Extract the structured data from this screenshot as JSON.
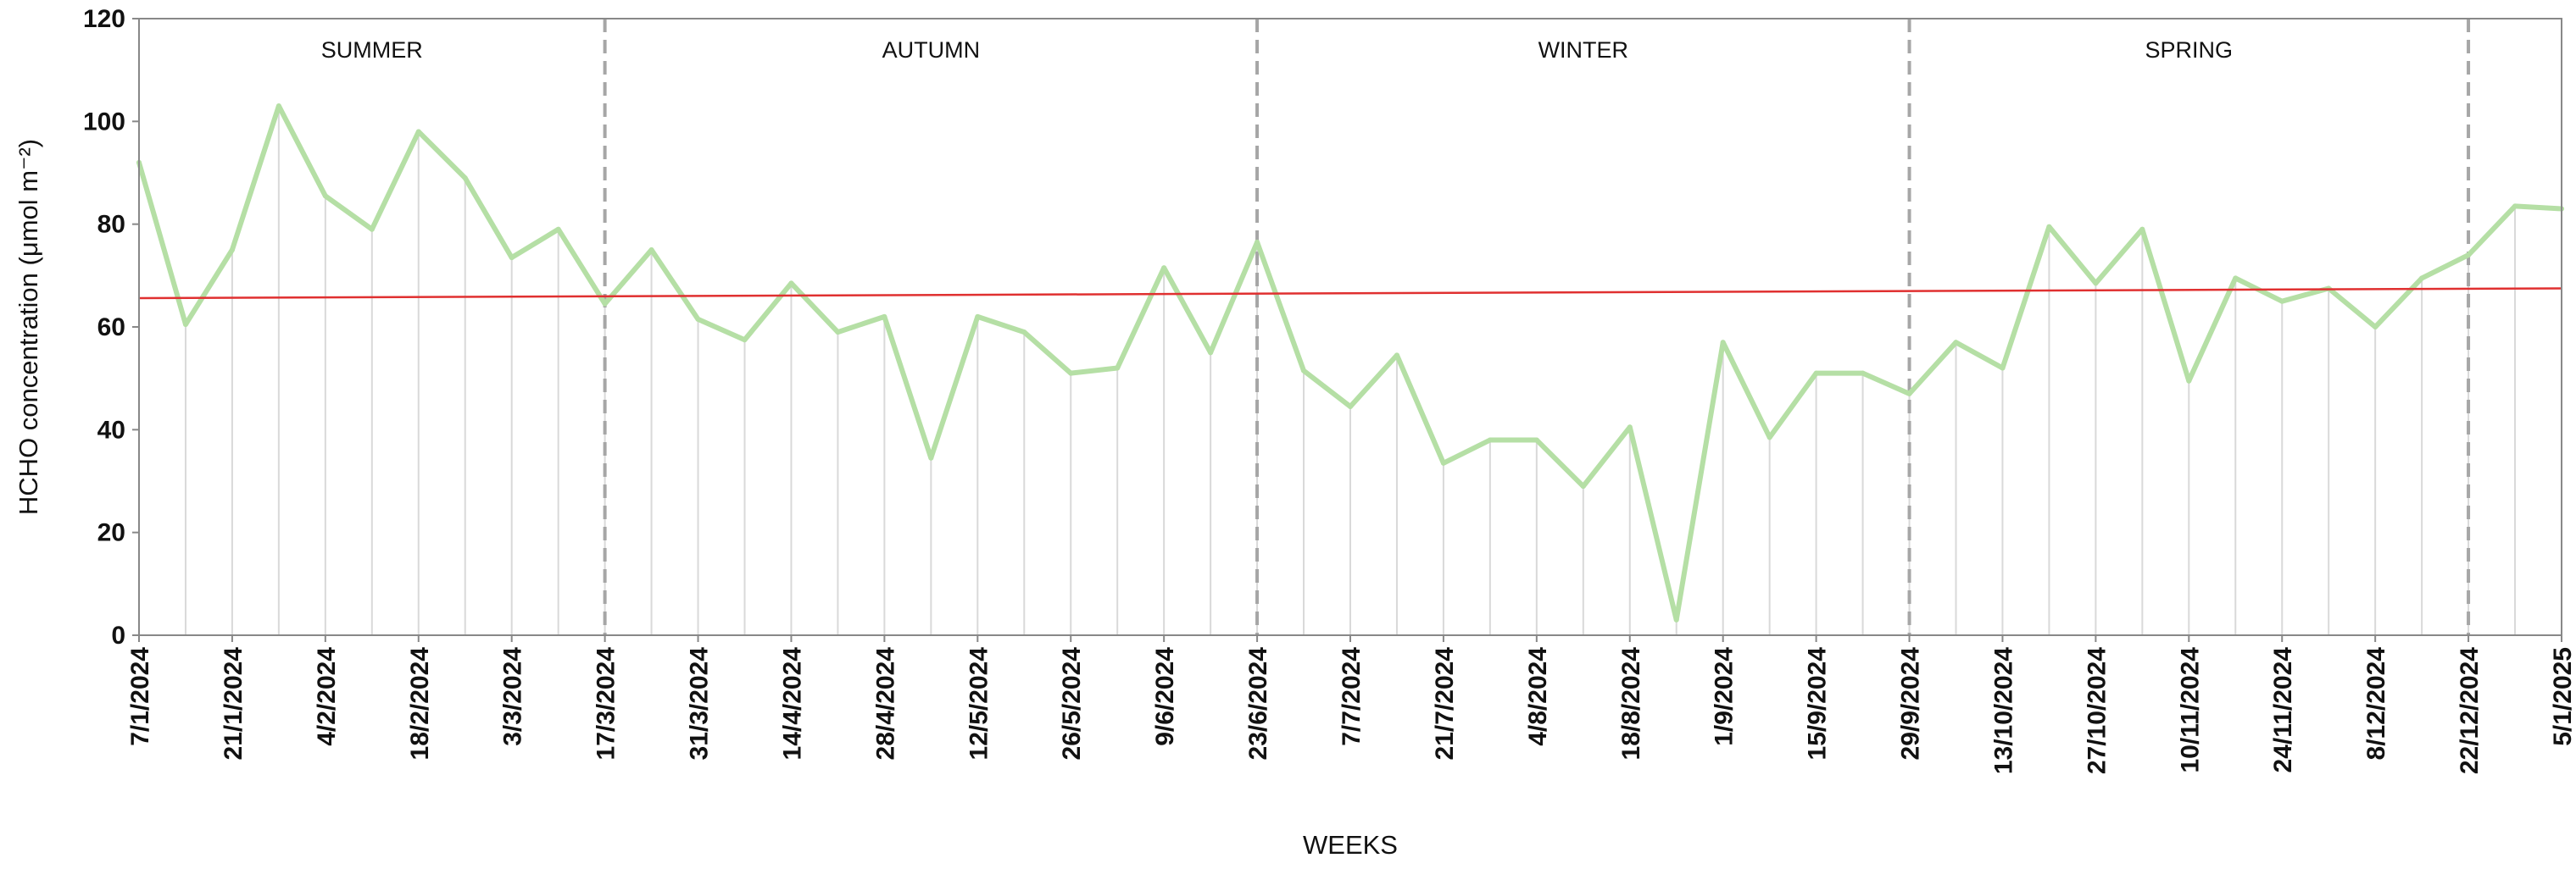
{
  "chart_data": {
    "type": "line",
    "xlabel": "WEEKS",
    "ylabel": "HCHO concentration (μmol m⁻²)",
    "ylim": [
      0,
      120
    ],
    "yticks": [
      0,
      20,
      40,
      60,
      80,
      100,
      120
    ],
    "grid": "vertical drop lines at each weekly point",
    "x": [
      "7/1/2024",
      "14/1/2024",
      "21/1/2024",
      "28/1/2024",
      "4/2/2024",
      "11/2/2024",
      "18/2/2024",
      "25/2/2024",
      "3/3/2024",
      "10/3/2024",
      "17/3/2024",
      "24/3/2024",
      "31/3/2024",
      "7/4/2024",
      "14/4/2024",
      "21/4/2024",
      "28/4/2024",
      "5/5/2024",
      "12/5/2024",
      "19/5/2024",
      "26/5/2024",
      "2/6/2024",
      "9/6/2024",
      "16/6/2024",
      "23/6/2024",
      "30/6/2024",
      "7/7/2024",
      "14/7/2024",
      "21/7/2024",
      "28/7/2024",
      "4/8/2024",
      "11/8/2024",
      "18/8/2024",
      "25/8/2024",
      "1/9/2024",
      "8/9/2024",
      "15/9/2024",
      "22/9/2024",
      "29/9/2024",
      "6/10/2024",
      "13/10/2024",
      "20/10/2024",
      "27/10/2024",
      "3/11/2024",
      "10/11/2024",
      "17/11/2024",
      "24/11/2024",
      "1/12/2024",
      "8/12/2024",
      "15/12/2024",
      "22/12/2024",
      "29/12/2024",
      "5/1/2025"
    ],
    "xtick_labels": [
      "7/1/2024",
      "21/1/2024",
      "4/2/2024",
      "18/2/2024",
      "3/3/2024",
      "17/3/2024",
      "31/3/2024",
      "14/4/2024",
      "28/4/2024",
      "12/5/2024",
      "26/5/2024",
      "9/6/2024",
      "23/6/2024",
      "7/7/2024",
      "21/7/2024",
      "4/8/2024",
      "18/8/2024",
      "1/9/2024",
      "15/9/2024",
      "29/9/2024",
      "13/10/2024",
      "27/10/2024",
      "10/11/2024",
      "24/11/2024",
      "8/12/2024",
      "22/12/2024",
      "5/1/2025"
    ],
    "series": [
      {
        "color": "#b5dfa5",
        "values": [
          92,
          60.5,
          75,
          103,
          85.5,
          79,
          98,
          89,
          73.5,
          79,
          64.5,
          75,
          61.5,
          57.5,
          68.5,
          59,
          62,
          34.5,
          62,
          59,
          51,
          52,
          71.5,
          55,
          76.5,
          51.5,
          44.5,
          54.5,
          33.5,
          38,
          38,
          29,
          40.5,
          3,
          57,
          38.5,
          51,
          51,
          47,
          57,
          52,
          79.5,
          68.5,
          79,
          49.5,
          69.5,
          65,
          67.5,
          60,
          69.5,
          74,
          83.5,
          83
        ]
      },
      {
        "color": "#e03030",
        "trendline": true,
        "values_at_ends": [
          65.6,
          67.5
        ]
      }
    ],
    "seasons": [
      {
        "label": "SUMMER",
        "start": "7/1/2024",
        "end": "17/3/2024"
      },
      {
        "label": "AUTUMN",
        "start": "17/3/2024",
        "end": "23/6/2024"
      },
      {
        "label": "WINTER",
        "start": "23/6/2024",
        "end": "29/9/2024"
      },
      {
        "label": "SPRING",
        "start": "29/9/2024",
        "end": "22/12/2024"
      }
    ],
    "season_dividers": [
      "17/3/2024",
      "23/6/2024",
      "29/9/2024",
      "22/12/2024"
    ]
  }
}
